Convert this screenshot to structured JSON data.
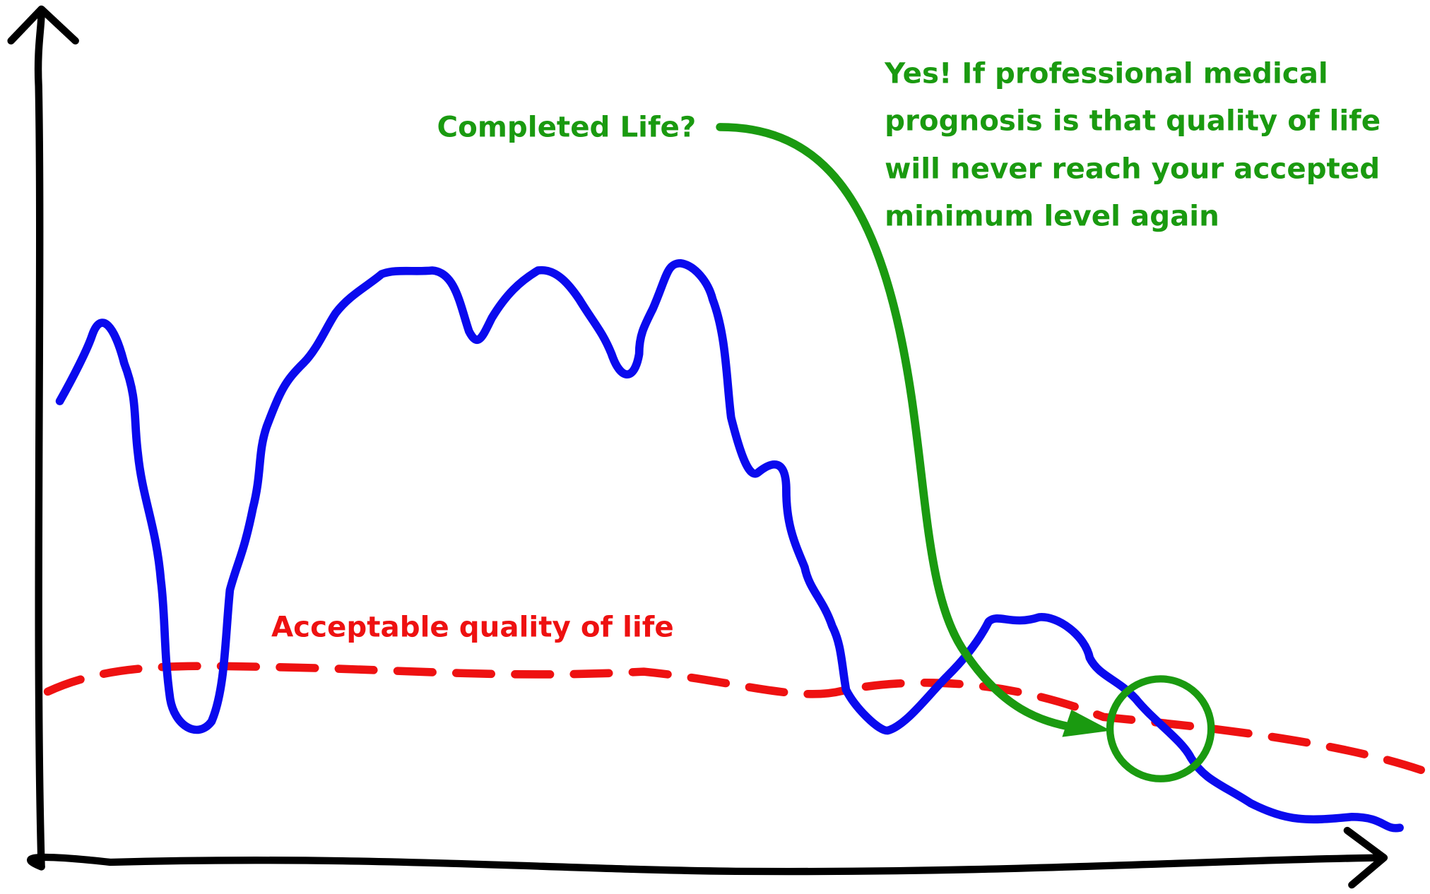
{
  "annotations": {
    "question": "Completed Life?",
    "answer_lines": [
      "Yes! If professional medical",
      "prognosis is that quality of life",
      "will never reach your accepted",
      "minimum level again"
    ],
    "threshold_label": "Acceptable quality of life"
  }
}
